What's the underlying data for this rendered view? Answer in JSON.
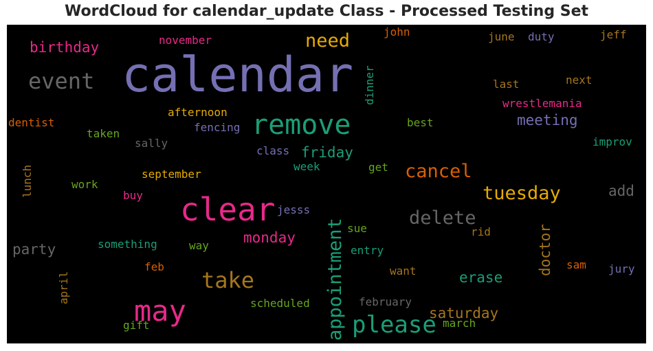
{
  "title": "WordCloud for calendar_update Class - Processed Testing Set",
  "colors": {
    "purple": "#7570b3",
    "green": "#1b9e77",
    "orange": "#d95f02",
    "pink": "#e7298a",
    "olive": "#66a61e",
    "gold": "#e6ab02",
    "brown": "#a6761d",
    "gray": "#666666"
  },
  "words": {
    "calendar": "calendar",
    "clear": "clear",
    "may": "may",
    "remove": "remove",
    "please": "please",
    "take": "take",
    "event": "event",
    "need": "need",
    "birthday": "birthday",
    "november": "november",
    "john": "john",
    "june": "june",
    "duty": "duty",
    "jeff": "jeff",
    "dinner": "dinner",
    "last": "last",
    "next": "next",
    "wrestlemania": "wrestlemania",
    "afternoon": "afternoon",
    "dentist": "dentist",
    "fencing": "fencing",
    "best": "best",
    "meeting": "meeting",
    "taken": "taken",
    "sally": "sally",
    "improv": "improv",
    "class": "class",
    "friday": "friday",
    "week": "week",
    "get": "get",
    "cancel": "cancel",
    "lunch": "lunch",
    "september": "september",
    "work": "work",
    "tuesday": "tuesday",
    "add": "add",
    "buy": "buy",
    "jesss": "jesss",
    "delete": "delete",
    "appointment": "appointment",
    "sue": "sue",
    "doctor": "doctor",
    "rid": "rid",
    "party": "party",
    "monday": "monday",
    "something": "something",
    "way": "way",
    "entry": "entry",
    "sam": "sam",
    "jury": "jury",
    "feb": "feb",
    "want": "want",
    "erase": "erase",
    "april": "april",
    "saturday": "saturday",
    "scheduled": "scheduled",
    "february": "february",
    "march": "march",
    "gift": "gift"
  }
}
